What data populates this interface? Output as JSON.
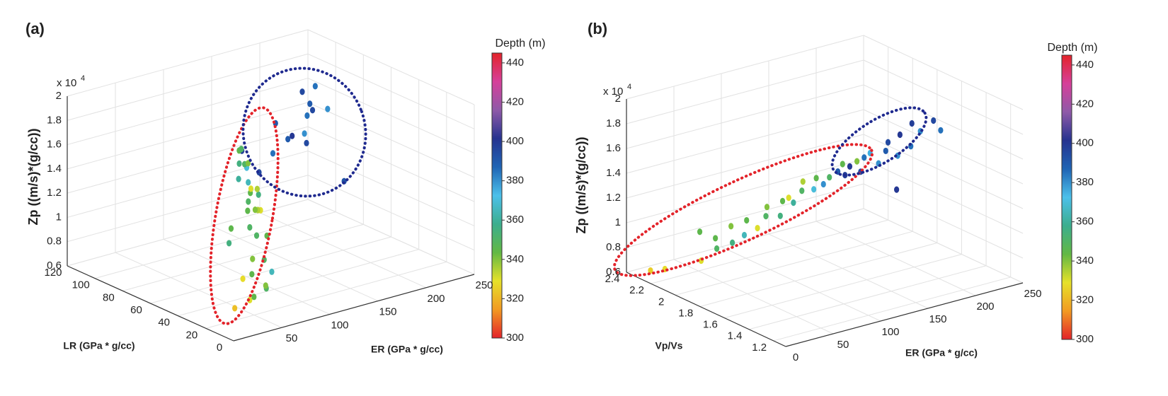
{
  "chart_data": [
    {
      "type": "scatter3d",
      "panel_label": "(a)",
      "xlabel": "ER (GPa * g/cc)",
      "ylabel": "LR (GPa * g/cc)",
      "zlabel": "Zp ((m/s)*(g/cc))",
      "zscale": "x 10",
      "zscale_exponent": "4",
      "x": [
        80,
        85,
        75,
        90,
        70,
        95,
        80,
        100,
        75,
        85,
        90,
        70,
        95,
        65,
        80,
        60,
        90,
        55,
        100,
        70,
        50,
        85,
        60,
        75,
        55,
        80,
        65,
        50,
        70,
        60,
        30,
        60,
        180,
        170,
        190,
        160,
        200,
        175,
        150,
        210,
        165,
        230,
        140,
        130,
        120,
        95,
        110
      ],
      "y": [
        50,
        55,
        48,
        52,
        45,
        58,
        45,
        60,
        40,
        42,
        50,
        38,
        48,
        35,
        40,
        30,
        45,
        40,
        50,
        32,
        38,
        35,
        28,
        30,
        25,
        28,
        22,
        20,
        25,
        30,
        20,
        35,
        70,
        65,
        75,
        60,
        80,
        72,
        65,
        78,
        62,
        80,
        55,
        60,
        55,
        60,
        58
      ],
      "z": [
        1.75,
        1.7,
        1.65,
        1.6,
        1.55,
        1.55,
        1.5,
        1.5,
        1.45,
        1.45,
        1.4,
        1.4,
        1.35,
        1.35,
        1.3,
        1.25,
        1.25,
        1.2,
        1.2,
        1.15,
        1.1,
        1.1,
        1.0,
        0.95,
        0.9,
        0.85,
        0.8,
        0.75,
        0.75,
        0.65,
        0.7,
        0.8,
        1.8,
        1.75,
        1.7,
        1.65,
        1.85,
        1.9,
        1.6,
        1.65,
        1.55,
        1.0,
        1.7,
        1.8,
        1.6,
        1.65,
        1.45
      ],
      "depth": [
        350,
        345,
        355,
        340,
        360,
        350,
        365,
        370,
        345,
        335,
        330,
        350,
        355,
        345,
        340,
        350,
        335,
        345,
        330,
        350,
        355,
        345,
        340,
        350,
        345,
        365,
        340,
        345,
        350,
        330,
        322,
        328,
        390,
        385,
        395,
        380,
        385,
        395,
        390,
        380,
        395,
        392,
        400,
        390,
        385,
        398,
        395
      ],
      "xlim": [
        0,
        250
      ],
      "xticks": [
        50,
        100,
        150,
        200,
        250
      ],
      "ylim": [
        0,
        120
      ],
      "yticks": [
        0,
        20,
        40,
        60,
        80,
        100,
        120
      ],
      "zlim": [
        0.6,
        2
      ],
      "zticks": [
        0.6,
        0.8,
        1,
        1.2,
        1.4,
        1.6,
        1.8,
        2
      ],
      "grid": true,
      "colorbar": {
        "label": "Depth (m)",
        "lim": [
          300,
          445
        ],
        "ticks": [
          300,
          320,
          340,
          360,
          380,
          400,
          420,
          440
        ],
        "colormap": [
          "#e3232a",
          "#f29a22",
          "#e6e12a",
          "#62b844",
          "#3cae8e",
          "#4cc0ea",
          "#1f64b4",
          "#26338f",
          "#8f5aa8",
          "#d6409a",
          "#e3232a"
        ]
      }
    },
    {
      "type": "scatter3d",
      "panel_label": "(b)",
      "xlabel": "ER (GPa * g/cc)",
      "ylabel": "Vp/Vs",
      "zlabel": "Zp ((m/s)*(g/cc))",
      "zscale": "x 10",
      "zscale_exponent": "4",
      "x": [
        15,
        25,
        40,
        45,
        50,
        55,
        60,
        65,
        70,
        75,
        80,
        85,
        90,
        95,
        100,
        100,
        105,
        110,
        115,
        120,
        120,
        125,
        130,
        135,
        140,
        140,
        145,
        150,
        150,
        155,
        160,
        165,
        170,
        175,
        180,
        185,
        190,
        195,
        200,
        210,
        175,
        215
      ],
      "y": [
        2.32,
        2.28,
        2.1,
        2.15,
        2.05,
        2.1,
        2.0,
        2.05,
        1.98,
        2.0,
        1.95,
        1.92,
        1.95,
        1.88,
        1.9,
        1.85,
        1.85,
        1.82,
        1.85,
        1.8,
        1.78,
        1.76,
        1.75,
        1.72,
        1.72,
        1.7,
        1.7,
        1.68,
        1.65,
        1.66,
        1.65,
        1.62,
        1.6,
        1.62,
        1.58,
        1.6,
        1.55,
        1.58,
        1.55,
        1.52,
        1.55,
        1.5
      ],
      "z": [
        0.62,
        0.63,
        0.75,
        0.95,
        0.85,
        0.9,
        0.9,
        1.0,
        0.95,
        1.05,
        1.0,
        1.1,
        1.15,
        1.1,
        1.2,
        1.25,
        1.2,
        1.3,
        1.35,
        1.3,
        1.4,
        1.35,
        1.4,
        1.45,
        1.5,
        1.42,
        1.48,
        1.52,
        1.45,
        1.55,
        1.58,
        1.5,
        1.6,
        1.65,
        1.55,
        1.7,
        1.62,
        1.78,
        1.72,
        1.8,
        1.3,
        1.72
      ],
      "depth": [
        325,
        328,
        330,
        345,
        350,
        345,
        355,
        340,
        365,
        345,
        330,
        350,
        340,
        355,
        345,
        330,
        360,
        350,
        335,
        370,
        345,
        380,
        350,
        390,
        345,
        398,
        400,
        340,
        395,
        385,
        375,
        380,
        390,
        395,
        380,
        400,
        385,
        398,
        380,
        395,
        400,
        385
      ],
      "xlim": [
        0,
        250
      ],
      "xticks": [
        0,
        50,
        100,
        150,
        200,
        250
      ],
      "ylim": [
        1.1,
        2.4
      ],
      "yticks": [
        1.2,
        1.4,
        1.6,
        1.8,
        2,
        2.2,
        2.4
      ],
      "zlim": [
        0.6,
        2
      ],
      "zticks": [
        0.6,
        0.8,
        1,
        1.2,
        1.4,
        1.6,
        1.8,
        2
      ],
      "grid": true,
      "colorbar": {
        "label": "Depth (m)",
        "lim": [
          300,
          445
        ],
        "ticks": [
          300,
          320,
          340,
          360,
          380,
          400,
          420,
          440
        ],
        "colormap": [
          "#e3232a",
          "#f29a22",
          "#e6e12a",
          "#62b844",
          "#3cae8e",
          "#4cc0ea",
          "#1f64b4",
          "#26338f",
          "#8f5aa8",
          "#d6409a",
          "#e3232a"
        ]
      }
    }
  ]
}
